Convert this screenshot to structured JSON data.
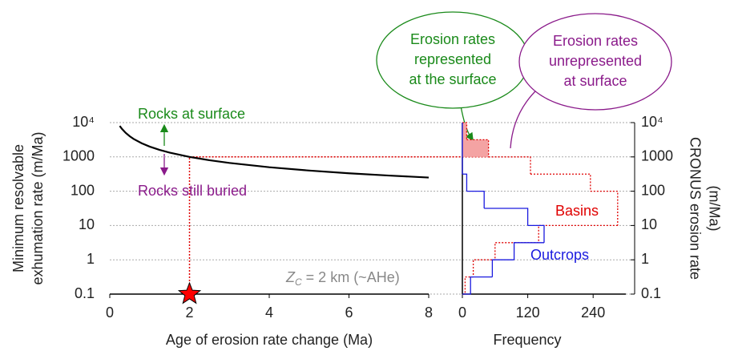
{
  "chart_data": [
    {
      "type": "line",
      "x": [
        0.25,
        0.3,
        0.4,
        0.5,
        0.6,
        0.8,
        1,
        1.25,
        1.5,
        2,
        2.5,
        3,
        4,
        5,
        6,
        7,
        8
      ],
      "values": [
        8000,
        6667,
        5000,
        4000,
        3333,
        2500,
        2000,
        1600,
        1333,
        1000,
        800,
        667,
        500,
        400,
        333,
        286,
        250
      ],
      "color": "#000000",
      "xlim": [
        0,
        8
      ],
      "xticks": [
        0,
        2,
        4,
        6,
        8
      ],
      "ylim": [
        0.1,
        10000
      ],
      "yticks": [
        0.1,
        1,
        10,
        100,
        1000,
        {
          "value": 10000,
          "label": "10⁴"
        }
      ],
      "log_y": true,
      "grid": true,
      "x_label": "Age of erosion rate change (Ma)",
      "y_label": [
        "Minimum resolvable",
        "exhumation rate (m/Ma)"
      ],
      "marker": {
        "x": 2,
        "y": 0.1
      },
      "threshold": 1000,
      "annotations": {
        "up": "Rocks at surface",
        "down": "Rocks still buried",
        "zc_symbol": "Z",
        "zc_sub": "C",
        "zc_rest": " = 2 km (~AHe)"
      }
    },
    {
      "type": "histogram",
      "orientation": "horizontal",
      "bins": [
        10000,
        3162,
        1000,
        316,
        100,
        31.6,
        10,
        3.16,
        1,
        0.316,
        0.1
      ],
      "series": [
        {
          "name": "Basins",
          "color": "#e00000",
          "style": "dotted",
          "values": [
            8,
            48,
            125,
            235,
            285,
            285,
            140,
            60,
            20,
            5
          ]
        },
        {
          "name": "Outcrops",
          "color": "#1a1adf",
          "style": "solid",
          "values": [
            0,
            0,
            0,
            8,
            40,
            120,
            150,
            95,
            55,
            15
          ]
        }
      ],
      "xlim": [
        0,
        300
      ],
      "xticks": [
        0,
        120,
        240
      ],
      "ylim": [
        0.1,
        10000
      ],
      "yticks": [
        0.1,
        1,
        10,
        100,
        1000,
        {
          "value": 10000,
          "label": "10⁴"
        }
      ],
      "log_y": true,
      "x_label": "Frequency",
      "y_label": [
        "CRONUS erosion rate",
        "(m/Ma)"
      ],
      "callouts": [
        {
          "lines": [
            "Erosion rates",
            "represented",
            "at the surface"
          ],
          "color": "#1a8a1a"
        },
        {
          "lines": [
            "Erosion rates",
            "unrepresented",
            "at surface"
          ],
          "color": "#8a1a8a"
        }
      ]
    }
  ]
}
